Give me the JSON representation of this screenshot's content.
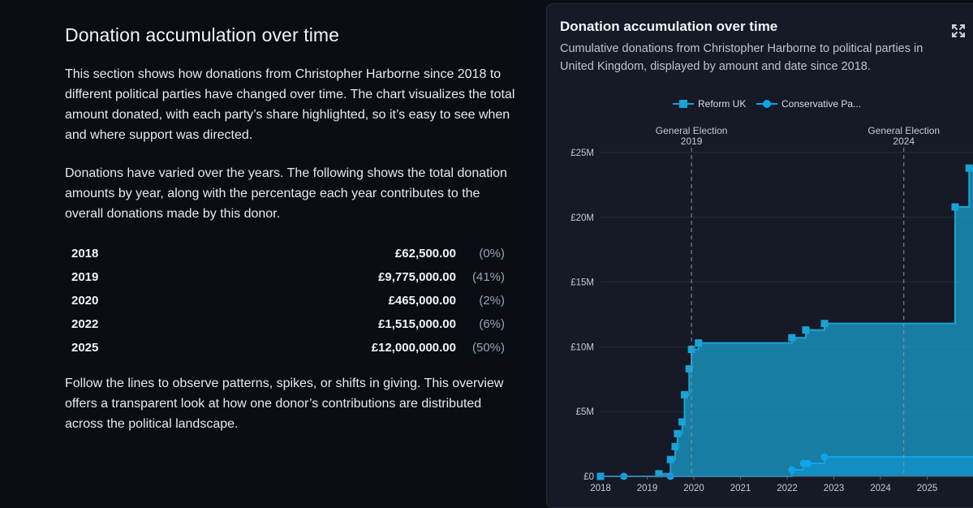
{
  "section": {
    "title": "Donation accumulation over time",
    "intro": "This section shows how donations from Christopher Harborne since 2018 to different political parties have changed over time. The chart visualizes the total amount donated, with each party’s share highlighted, so it’s easy to see when and where support was directed.",
    "varied": "Donations have varied over the years. The following shows the total donation amounts by year, along with the percentage each year contributes to the overall donations made by this donor.",
    "years": [
      {
        "year": "2018",
        "amount": "£62,500.00",
        "pct": "(0%)"
      },
      {
        "year": "2019",
        "amount": "£9,775,000.00",
        "pct": "(41%)"
      },
      {
        "year": "2020",
        "amount": "£465,000.00",
        "pct": "(2%)"
      },
      {
        "year": "2022",
        "amount": "£1,515,000.00",
        "pct": "(6%)"
      },
      {
        "year": "2025",
        "amount": "£12,000,000.00",
        "pct": "(50%)"
      }
    ],
    "outro": "Follow the lines to observe patterns, spikes, or shifts in giving. This overview offers a transparent look at how one donor’s contributions are distributed across the political landscape."
  },
  "card": {
    "title": "Donation accumulation over time",
    "subtitle": "Cumulative donations from Christopher Harborne to political parties in United Kingdom, displayed by amount and date since 2018.",
    "expand_icon": "expand-icon"
  },
  "colors": {
    "reform": "#1aa3d4",
    "conservative": "#0ea5e9",
    "background": "#0a0d14",
    "card": "#151a26"
  },
  "chart_data": {
    "type": "area",
    "title": "",
    "xlabel": "",
    "ylabel": "",
    "xlim": [
      2018.0,
      2026.0
    ],
    "ylim": [
      0,
      25000000
    ],
    "x_ticks": [
      "2018",
      "2019",
      "2020",
      "2021",
      "2022",
      "2023",
      "2024",
      "2025"
    ],
    "y_ticks": [
      "£0",
      "£5M",
      "£10M",
      "£15M",
      "£20M",
      "£25M"
    ],
    "legend_position": "top",
    "annotations": [
      {
        "label": [
          "General Election",
          "2019"
        ],
        "x": 2019.95
      },
      {
        "label": [
          "General Election",
          "2024"
        ],
        "x": 2024.5
      }
    ],
    "series": [
      {
        "name": "Reform UK",
        "legend_label": "Reform UK",
        "marker": "square",
        "points": [
          [
            2018.0,
            0
          ],
          [
            2019.25,
            200000
          ],
          [
            2019.5,
            1300000
          ],
          [
            2019.6,
            2300000
          ],
          [
            2019.65,
            3300000
          ],
          [
            2019.75,
            4200000
          ],
          [
            2019.8,
            6300000
          ],
          [
            2019.9,
            8300000
          ],
          [
            2019.95,
            9800000
          ],
          [
            2020.1,
            10300000
          ],
          [
            2022.1,
            10700000
          ],
          [
            2022.4,
            11300000
          ],
          [
            2022.8,
            11800000
          ],
          [
            2025.6,
            20800000
          ],
          [
            2025.9,
            23800000
          ]
        ]
      },
      {
        "name": "Conservative Party",
        "legend_label": "Conservative Pa...",
        "marker": "circle",
        "points": [
          [
            2018.0,
            0
          ],
          [
            2018.5,
            0
          ],
          [
            2019.5,
            0
          ],
          [
            2022.1,
            500000
          ],
          [
            2022.35,
            1000000
          ],
          [
            2022.45,
            1000000
          ],
          [
            2022.8,
            1500000
          ]
        ]
      }
    ]
  }
}
